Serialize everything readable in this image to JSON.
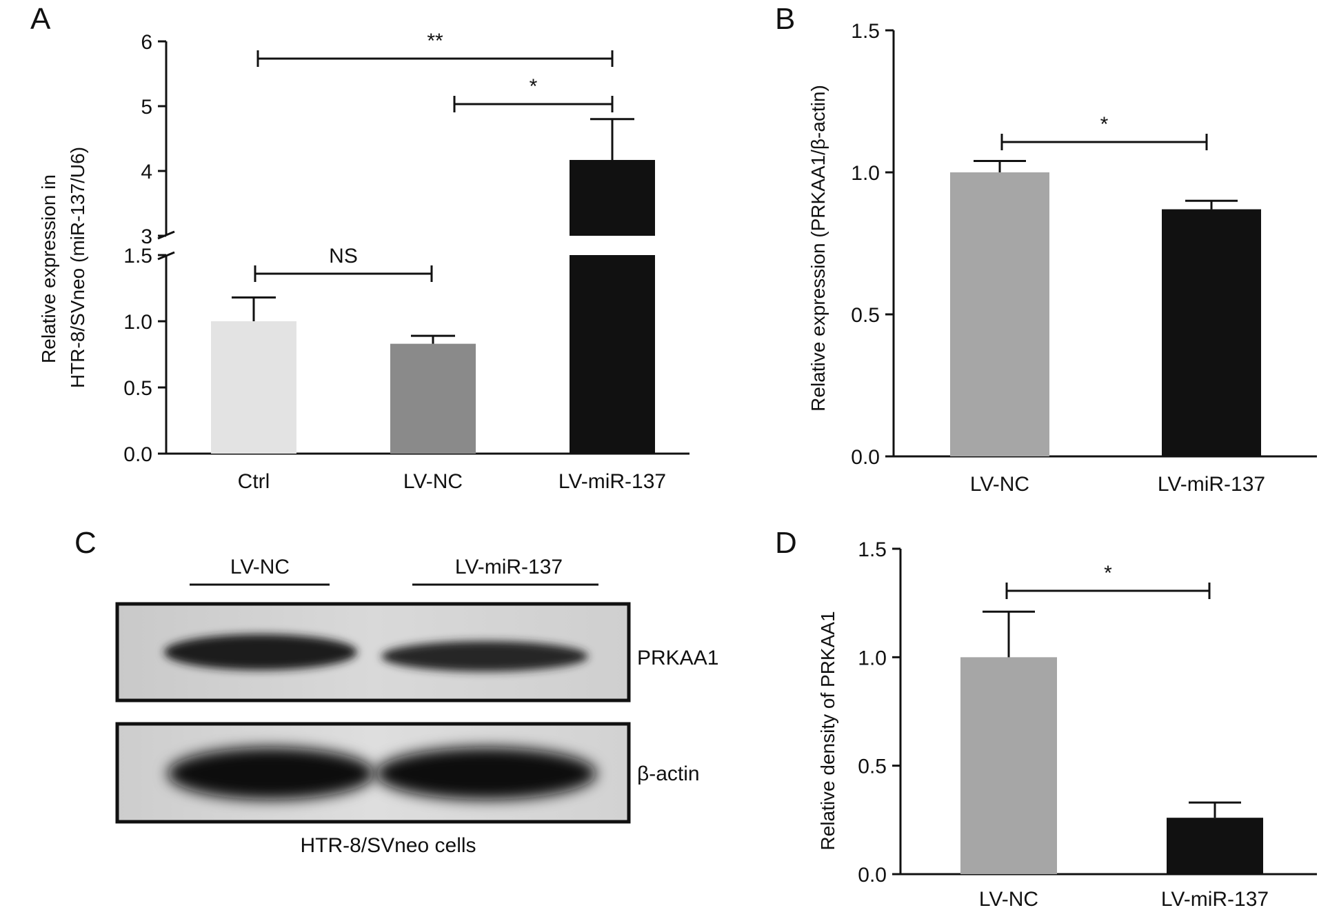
{
  "chart_data": [
    {
      "panel": "A",
      "type": "bar",
      "ylabel_lines": [
        "Relative expression in",
        "HTR-8/SVneo (miR-137/U6)"
      ],
      "categories": [
        "Ctrl",
        "LV-NC",
        "LV-miR-137"
      ],
      "values": [
        1.0,
        0.83,
        4.17
      ],
      "errors": [
        0.18,
        0.06,
        0.63
      ],
      "colors": [
        "#e3e3e3",
        "#8a8a8a",
        "#111111"
      ],
      "axis_break": {
        "lower": [
          0,
          1.5
        ],
        "upper": [
          3,
          6
        ]
      },
      "yticks_lower": [
        "0.0",
        "0.5",
        "1.0",
        "1.5"
      ],
      "yticks_upper": [
        "3",
        "4",
        "5",
        "6"
      ],
      "significance": [
        {
          "from": "Ctrl",
          "to": "LV-NC",
          "label": "NS"
        },
        {
          "from": "LV-NC",
          "to": "LV-miR-137",
          "label": "*"
        },
        {
          "from": "Ctrl",
          "to": "LV-miR-137",
          "label": "**"
        }
      ]
    },
    {
      "panel": "B",
      "type": "bar",
      "ylabel": "Relative expression (PRKAA1/β-actin)",
      "categories": [
        "LV-NC",
        "LV-miR-137"
      ],
      "values": [
        1.0,
        0.87
      ],
      "errors": [
        0.04,
        0.03
      ],
      "colors": [
        "#a6a6a6",
        "#111111"
      ],
      "ylim": [
        0,
        1.5
      ],
      "yticks": [
        "0.0",
        "0.5",
        "1.0",
        "1.5"
      ],
      "significance": [
        {
          "from": "LV-NC",
          "to": "LV-miR-137",
          "label": "*"
        }
      ]
    },
    {
      "panel": "D",
      "type": "bar",
      "ylabel": "Relative density of PRKAA1",
      "categories": [
        "LV-NC",
        "LV-miR-137"
      ],
      "values": [
        1.0,
        0.26
      ],
      "errors": [
        0.21,
        0.07
      ],
      "colors": [
        "#a6a6a6",
        "#111111"
      ],
      "ylim": [
        0,
        1.5
      ],
      "yticks": [
        "0.0",
        "0.5",
        "1.0",
        "1.5"
      ],
      "significance": [
        {
          "from": "LV-NC",
          "to": "LV-miR-137",
          "label": "*"
        }
      ]
    }
  ],
  "panels": {
    "a": {
      "letter": "A"
    },
    "b": {
      "letter": "B"
    },
    "c": {
      "letter": "C",
      "lanes": [
        "LV-NC",
        "LV-miR-137"
      ],
      "bands": [
        "PRKAA1",
        "β-actin"
      ],
      "caption": "HTR-8/SVneo cells"
    },
    "d": {
      "letter": "D"
    }
  }
}
